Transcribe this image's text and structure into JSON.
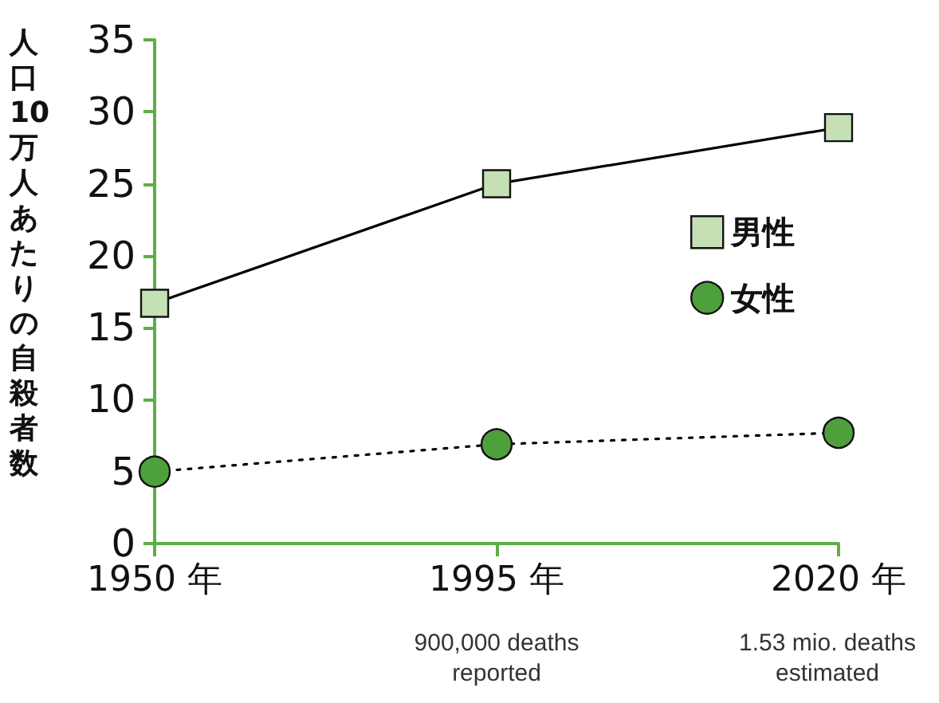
{
  "chart_data": {
    "type": "line",
    "ylabel": "人口10万人あたりの自殺者数",
    "categories": [
      "1950 年",
      "1995 年",
      "2020 年"
    ],
    "series": [
      {
        "name": "男性",
        "color": "#c5e0b4",
        "values": [
          16.7,
          25.0,
          28.9
        ],
        "marker": "square",
        "line_style": "solid"
      },
      {
        "name": "女性",
        "color": "#4ea03c",
        "values": [
          5.0,
          6.9,
          7.7
        ],
        "marker": "circle",
        "line_style": "dotted"
      }
    ],
    "ylim": [
      0,
      35
    ],
    "yticks": [
      0,
      5,
      10,
      15,
      20,
      25,
      30,
      35
    ],
    "grid": false,
    "legend": "right",
    "annotations": [
      "900,000 deaths\nreported",
      "1.53 mio. deaths\nestimated"
    ]
  }
}
